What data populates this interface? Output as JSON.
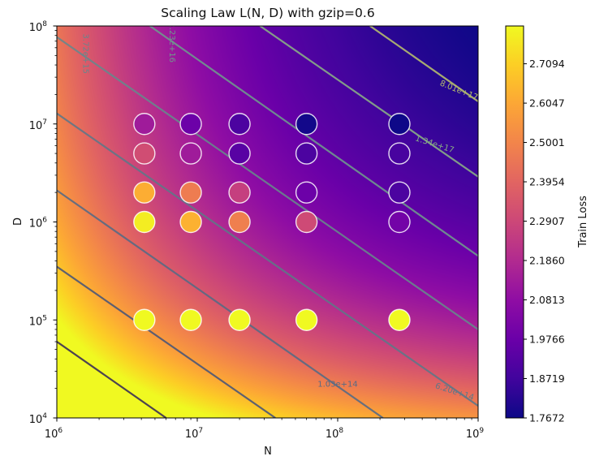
{
  "chart_data": {
    "type": "heatmap",
    "title": "Scaling Law L(N, D) with gzip=0.6",
    "xlabel": "N",
    "ylabel": "D",
    "xscale": "log",
    "yscale": "log",
    "xlim": [
      1000000.0,
      1000000000.0
    ],
    "ylim": [
      10000.0,
      100000000.0
    ],
    "x_ticks": [
      {
        "value": 1000000.0,
        "base": "10",
        "exp": "6"
      },
      {
        "value": 10000000.0,
        "base": "10",
        "exp": "7"
      },
      {
        "value": 100000000.0,
        "base": "10",
        "exp": "8"
      },
      {
        "value": 1000000000.0,
        "base": "10",
        "exp": "9"
      }
    ],
    "y_ticks": [
      {
        "value": 10000.0,
        "base": "10",
        "exp": "4"
      },
      {
        "value": 100000.0,
        "base": "10",
        "exp": "5"
      },
      {
        "value": 1000000.0,
        "base": "10",
        "exp": "6"
      },
      {
        "value": 10000000.0,
        "base": "10",
        "exp": "7"
      },
      {
        "value": 100000000.0,
        "base": "10",
        "exp": "8"
      }
    ],
    "grid": false,
    "colormap": "plasma",
    "colorbar": {
      "label": "Train Loss",
      "vmin": 1.7672,
      "vmax": 2.81,
      "ticks": [
        "1.7672",
        "1.8719",
        "1.9766",
        "2.0813",
        "2.1860",
        "2.2907",
        "2.3954",
        "2.5001",
        "2.6047",
        "2.7094"
      ],
      "position": "right"
    },
    "contours": [
      {
        "label": "",
        "color": "#3a2f55",
        "points": [
          [
            1000000.0,
            60000.0
          ],
          [
            6000000.0,
            10000.0
          ]
        ]
      },
      {
        "label": "",
        "color": "#4b5677",
        "points": [
          [
            1000000.0,
            350000.0
          ],
          [
            36000000.0,
            10000.0
          ]
        ]
      },
      {
        "label": "1.03e+14",
        "color": "#586a84",
        "points": [
          [
            1000000.0,
            2100000.0
          ],
          [
            210000000.0,
            10000.0
          ]
        ],
        "label_at": [
          100000000.0,
          22000.0
        ]
      },
      {
        "label": "6.20e+14",
        "color": "#5f7787",
        "points": [
          [
            1000000.0,
            12800000.0
          ],
          [
            1000000000.0,
            13300.0
          ]
        ],
        "label_at": [
          680000000.0,
          18500.0
        ]
      },
      {
        "label": "3.72e+15",
        "color": "#67878c",
        "points": [
          [
            1000000.0,
            77000000.0
          ],
          [
            1000000000.0,
            80000.0
          ]
        ],
        "label_at": [
          1600000.0,
          52000000.0
        ]
      },
      {
        "label": "2.23e+16",
        "color": "#6f988e",
        "points": [
          [
            4600000.0,
            100000000.0
          ],
          [
            1000000000.0,
            450000.0
          ]
        ],
        "label_at": [
          6600000.0,
          68000000.0
        ]
      },
      {
        "label": "1.34e+17",
        "color": "#88ad86",
        "points": [
          [
            28000000.0,
            100000000.0
          ],
          [
            1000000000.0,
            2900000.0
          ]
        ],
        "label_at": [
          490000000.0,
          6200000.0
        ]
      },
      {
        "label": "8.01e+17",
        "color": "#b5bd6e",
        "points": [
          [
            170000000.0,
            100000000.0
          ],
          [
            1000000000.0,
            17000000.0
          ]
        ],
        "label_at": [
          730000000.0,
          22000000.0
        ]
      }
    ],
    "scatter": {
      "edge_color": "#ffffff",
      "points": [
        {
          "N": 4200000.0,
          "D": 10000000.0,
          "loss": 2.13
        },
        {
          "N": 9000000.0,
          "D": 10000000.0,
          "loss": 1.98
        },
        {
          "N": 20000000.0,
          "D": 10000000.0,
          "loss": 1.9
        },
        {
          "N": 60000000.0,
          "D": 10000000.0,
          "loss": 1.78
        },
        {
          "N": 275000000.0,
          "D": 10000000.0,
          "loss": 1.77
        },
        {
          "N": 4200000.0,
          "D": 5000000.0,
          "loss": 2.31
        },
        {
          "N": 9000000.0,
          "D": 5000000.0,
          "loss": 2.13
        },
        {
          "N": 20000000.0,
          "D": 5000000.0,
          "loss": 1.93
        },
        {
          "N": 60000000.0,
          "D": 5000000.0,
          "loss": 1.9
        },
        {
          "N": 275000000.0,
          "D": 5000000.0,
          "loss": 1.89
        },
        {
          "N": 4200000.0,
          "D": 2000000.0,
          "loss": 2.62
        },
        {
          "N": 9000000.0,
          "D": 2000000.0,
          "loss": 2.47
        },
        {
          "N": 20000000.0,
          "D": 2000000.0,
          "loss": 2.26
        },
        {
          "N": 60000000.0,
          "D": 2000000.0,
          "loss": 1.98
        },
        {
          "N": 275000000.0,
          "D": 2000000.0,
          "loss": 1.9
        },
        {
          "N": 4200000.0,
          "D": 1000000.0,
          "loss": 2.78
        },
        {
          "N": 9000000.0,
          "D": 1000000.0,
          "loss": 2.63
        },
        {
          "N": 20000000.0,
          "D": 1000000.0,
          "loss": 2.48
        },
        {
          "N": 60000000.0,
          "D": 1000000.0,
          "loss": 2.3
        },
        {
          "N": 275000000.0,
          "D": 1000000.0,
          "loss": 2.0
        },
        {
          "N": 4200000.0,
          "D": 100000.0,
          "loss": 2.81
        },
        {
          "N": 9000000.0,
          "D": 100000.0,
          "loss": 2.81
        },
        {
          "N": 20000000.0,
          "D": 100000.0,
          "loss": 2.81
        },
        {
          "N": 60000000.0,
          "D": 100000.0,
          "loss": 2.81
        },
        {
          "N": 275000000.0,
          "D": 100000.0,
          "loss": 2.81
        }
      ]
    }
  }
}
